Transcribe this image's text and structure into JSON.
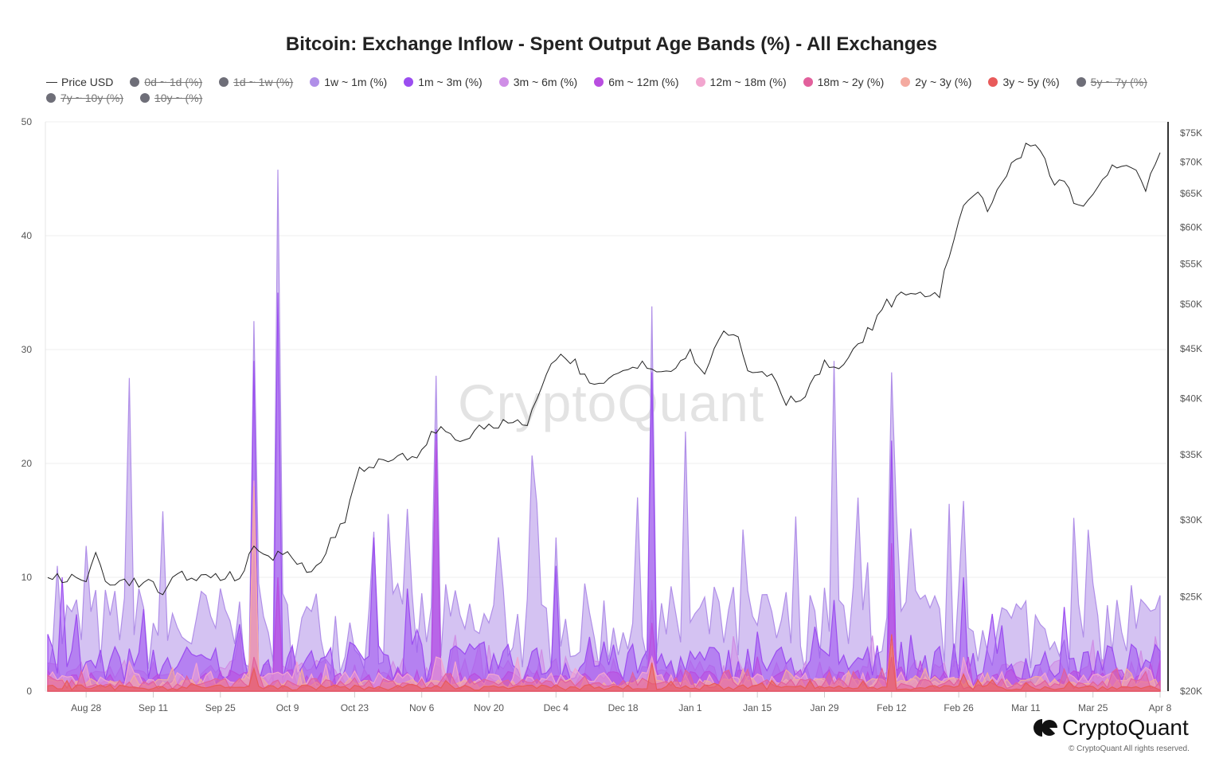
{
  "chart_data": {
    "type": "area",
    "title": "Bitcoin: Exchange Inflow - Spent Output Age Bands (%) - All Exchanges",
    "start_date": "Aug 20",
    "days": 233,
    "x_ticks": [
      {
        "day": 8,
        "label": "Aug 28"
      },
      {
        "day": 22,
        "label": "Sep 11"
      },
      {
        "day": 36,
        "label": "Sep 25"
      },
      {
        "day": 50,
        "label": "Oct 9"
      },
      {
        "day": 64,
        "label": "Oct 23"
      },
      {
        "day": 78,
        "label": "Nov 6"
      },
      {
        "day": 92,
        "label": "Nov 20"
      },
      {
        "day": 106,
        "label": "Dec 4"
      },
      {
        "day": 120,
        "label": "Dec 18"
      },
      {
        "day": 134,
        "label": "Jan 1"
      },
      {
        "day": 148,
        "label": "Jan 15"
      },
      {
        "day": 162,
        "label": "Jan 29"
      },
      {
        "day": 176,
        "label": "Feb 12"
      },
      {
        "day": 190,
        "label": "Feb 26"
      },
      {
        "day": 204,
        "label": "Mar 11"
      },
      {
        "day": 218,
        "label": "Mar 25"
      },
      {
        "day": 232,
        "label": "Apr 8"
      }
    ],
    "y_left": {
      "range": [
        0,
        50
      ],
      "ticks": [
        "0",
        "10",
        "20",
        "30",
        "40",
        "50"
      ]
    },
    "y_right": {
      "scale": "log",
      "range_k": [
        20,
        75
      ],
      "ticks": [
        {
          "v": 20,
          "label": "$20K"
        },
        {
          "v": 25,
          "label": "$25K"
        },
        {
          "v": 30,
          "label": "$30K"
        },
        {
          "v": 35,
          "label": "$35K"
        },
        {
          "v": 40,
          "label": "$40K"
        },
        {
          "v": 45,
          "label": "$45K"
        },
        {
          "v": 50,
          "label": "$50K"
        },
        {
          "v": 55,
          "label": "$55K"
        },
        {
          "v": 60,
          "label": "$60K"
        },
        {
          "v": 65,
          "label": "$65K"
        },
        {
          "v": 70,
          "label": "$70K"
        },
        {
          "v": 75,
          "label": "$75K"
        }
      ]
    },
    "legend": [
      {
        "label": "Price USD",
        "type": "line",
        "color": "#333333",
        "visible": true
      },
      {
        "label": "0d ~ 1d (%)",
        "color": "#6e6e78",
        "visible": false
      },
      {
        "label": "1d ~ 1w (%)",
        "color": "#6e6e78",
        "visible": false
      },
      {
        "label": "1w ~ 1m (%)",
        "color": "#b08fe8",
        "visible": true
      },
      {
        "label": "1m ~ 3m (%)",
        "color": "#9b4df0",
        "visible": true
      },
      {
        "label": "3m ~ 6m (%)",
        "color": "#cf8ee6",
        "visible": true
      },
      {
        "label": "6m ~ 12m (%)",
        "color": "#b94ee0",
        "visible": true
      },
      {
        "label": "12m ~ 18m (%)",
        "color": "#f2a6cf",
        "visible": true
      },
      {
        "label": "18m ~ 2y (%)",
        "color": "#e2609c",
        "visible": true
      },
      {
        "label": "2y ~ 3y (%)",
        "color": "#f4aaa0",
        "visible": true
      },
      {
        "label": "3y ~ 5y (%)",
        "color": "#e85a5a",
        "visible": true
      },
      {
        "label": "5y ~ 7y (%)",
        "color": "#6e6e78",
        "visible": false
      },
      {
        "label": "7y ~ 10y (%)",
        "color": "#6e6e78",
        "visible": false
      },
      {
        "label": "10y ~ (%)",
        "color": "#6e6e78",
        "visible": false
      }
    ],
    "price_usd_k": [
      [
        0,
        26.2
      ],
      [
        8,
        26.0
      ],
      [
        10,
        27.7
      ],
      [
        12,
        26.0
      ],
      [
        22,
        25.8
      ],
      [
        24,
        25.0
      ],
      [
        27,
        26.3
      ],
      [
        33,
        26.2
      ],
      [
        40,
        26.3
      ],
      [
        43,
        27.9
      ],
      [
        47,
        27.5
      ],
      [
        50,
        27.8
      ],
      [
        54,
        26.8
      ],
      [
        57,
        27.0
      ],
      [
        59,
        28.5
      ],
      [
        62,
        30.0
      ],
      [
        65,
        34.0
      ],
      [
        72,
        34.5
      ],
      [
        78,
        35.2
      ],
      [
        81,
        37.3
      ],
      [
        86,
        36.3
      ],
      [
        92,
        37.5
      ],
      [
        100,
        37.8
      ],
      [
        106,
        44
      ],
      [
        110,
        43.5
      ],
      [
        113,
        41.2
      ],
      [
        120,
        42.5
      ],
      [
        124,
        43.8
      ],
      [
        128,
        42.5
      ],
      [
        134,
        44.5
      ],
      [
        137,
        42.8
      ],
      [
        141,
        46.8
      ],
      [
        144,
        46.2
      ],
      [
        146,
        42.8
      ],
      [
        151,
        42.5
      ],
      [
        154,
        39.8
      ],
      [
        157,
        40
      ],
      [
        162,
        43.3
      ],
      [
        166,
        43
      ],
      [
        170,
        46
      ],
      [
        175,
        50
      ],
      [
        180,
        51.5
      ],
      [
        186,
        51.0
      ],
      [
        190,
        61.5
      ],
      [
        194,
        65
      ],
      [
        196,
        63
      ],
      [
        200,
        68
      ],
      [
        204,
        72.3
      ],
      [
        206,
        73.2
      ],
      [
        210,
        66.5
      ],
      [
        212,
        67
      ],
      [
        215,
        62.5
      ],
      [
        218,
        64.5
      ],
      [
        222,
        69.5
      ],
      [
        226,
        69
      ],
      [
        229,
        65.5
      ],
      [
        232,
        71.5
      ]
    ],
    "bands": [
      {
        "label": "1w ~ 1m (%)",
        "base": 5,
        "spikes": [
          [
            2,
            11
          ],
          [
            17,
            27.5
          ],
          [
            43,
            32.5
          ],
          [
            48,
            45.8
          ],
          [
            68,
            14
          ],
          [
            75,
            16
          ],
          [
            81,
            27.7
          ],
          [
            95,
            9
          ],
          [
            101,
            20.7
          ],
          [
            106,
            13.5
          ],
          [
            126,
            33.8
          ],
          [
            133,
            22.8
          ],
          [
            164,
            29
          ],
          [
            169,
            17
          ],
          [
            176,
            28
          ],
          [
            191,
            16.7
          ],
          [
            226,
            9.3
          ]
        ]
      },
      {
        "label": "3m ~ 6m (%)",
        "base": 1.5,
        "spikes": [
          [
            43,
            12
          ],
          [
            48,
            10
          ],
          [
            126,
            8
          ],
          [
            176,
            9
          ]
        ]
      },
      {
        "label": "1m ~ 3m (%)",
        "base": 2.2,
        "spikes": [
          [
            3,
            10
          ],
          [
            43,
            29
          ],
          [
            48,
            35
          ],
          [
            68,
            13.5
          ],
          [
            75,
            9
          ],
          [
            81,
            23
          ],
          [
            106,
            11
          ],
          [
            126,
            28
          ],
          [
            164,
            8
          ],
          [
            176,
            22
          ],
          [
            191,
            10
          ]
        ]
      },
      {
        "label": "6m ~ 12m (%)",
        "base": 1,
        "spikes": [
          [
            43,
            12
          ],
          [
            48,
            10
          ],
          [
            81,
            22
          ],
          [
            126,
            6
          ],
          [
            176,
            13
          ]
        ]
      },
      {
        "label": "12m ~ 18m (%)",
        "base": 0.9,
        "spikes": [
          [
            43,
            18.5
          ],
          [
            126,
            3
          ],
          [
            176,
            5
          ],
          [
            191,
            3
          ]
        ]
      },
      {
        "label": "2y ~ 3y (%)",
        "base": 0.6,
        "spikes": [
          [
            43,
            18
          ],
          [
            126,
            2.5
          ],
          [
            176,
            4
          ]
        ]
      },
      {
        "label": "18m ~ 2y (%)",
        "base": 0.6,
        "spikes": [
          [
            43,
            3
          ],
          [
            176,
            3
          ]
        ]
      },
      {
        "label": "3y ~ 5y (%)",
        "base": 0.3,
        "spikes": [
          [
            43,
            2
          ],
          [
            126,
            2.5
          ],
          [
            176,
            5
          ],
          [
            191,
            1.5
          ]
        ]
      }
    ]
  },
  "watermark": "CryptoQuant",
  "footer": {
    "brand": "CryptoQuant",
    "copyright": "© CryptoQuant All rights reserved."
  }
}
